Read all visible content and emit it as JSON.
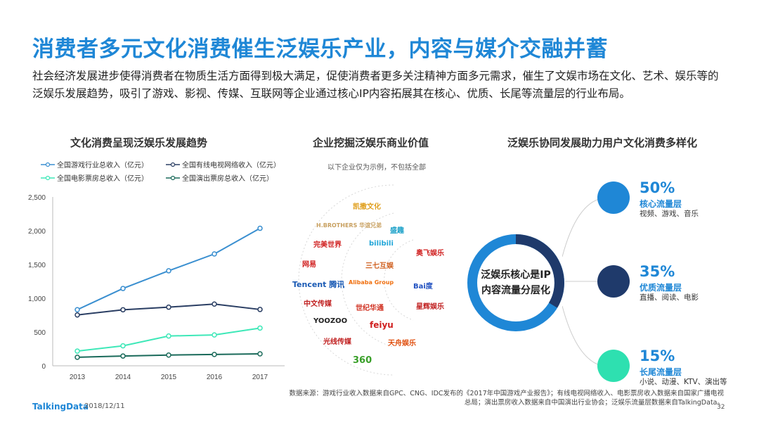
{
  "title": "消费者多元文化消费催生泛娱乐产业，内容与媒介交融并蓄",
  "intro": "社会经济发展进步使得消费者在物质生活方面得到极大满足，促使消费者更多关注精神方面多元需求，催生了文娱市场在文化、艺术、娱乐等的泛娱乐发展趋势，吸引了游戏、影视、传媒、互联网等企业通过核心IP内容拓展其在核心、优质、长尾等流量层的行业布局。",
  "left_section": {
    "title": "文化消费呈现泛娱乐发展趋势"
  },
  "middle_section": {
    "title": "企业挖掘泛娱乐商业价值",
    "note": "以下企业仅为示例，不包括全部",
    "logos": [
      {
        "name": "凯撒文化",
        "color": "#e0a020"
      },
      {
        "name": "H.BROTHERS 华谊兄弟",
        "color": "#c8a060"
      },
      {
        "name": "盛趣",
        "color": "#1aa0c8"
      },
      {
        "name": "完美世界",
        "color": "#d02020"
      },
      {
        "name": "bilibili",
        "color": "#22a6d8"
      },
      {
        "name": "网易",
        "color": "#d02020"
      },
      {
        "name": "三七互娱",
        "color": "#d06020"
      },
      {
        "name": "奥飞娱乐",
        "color": "#d02020"
      },
      {
        "name": "Tencent 腾讯",
        "color": "#1a5ab4"
      },
      {
        "name": "Alibaba Group",
        "color": "#f07010"
      },
      {
        "name": "Bai度",
        "color": "#2050c0"
      },
      {
        "name": "中文传媒",
        "color": "#c02020"
      },
      {
        "name": "世纪华通",
        "color": "#d03020"
      },
      {
        "name": "星辉娱乐",
        "color": "#c02020"
      },
      {
        "name": "YOOZOO",
        "color": "#222222"
      },
      {
        "name": "feiyu",
        "color": "#d02020"
      },
      {
        "name": "光线传媒",
        "color": "#c02020"
      },
      {
        "name": "天舟娱乐",
        "color": "#e05010"
      },
      {
        "name": "360",
        "color": "#3aa02a"
      }
    ]
  },
  "right_section": {
    "title": "泛娱乐协同发展助力用户文化消费多样化",
    "ring_label_1": "泛娱乐核心是IP",
    "ring_label_2": "内容流量分层化",
    "ring_colors": [
      "#1f87d6",
      "#1f3a6b"
    ],
    "layers": [
      {
        "pct": "50%",
        "name": "核心流量层",
        "desc": "视频、游戏、音乐",
        "color": "#1f87d6"
      },
      {
        "pct": "35%",
        "name": "优质流量层",
        "desc": "直播、阅读、电影",
        "color": "#1f3a6b"
      },
      {
        "pct": "15%",
        "name": "长尾流量层",
        "desc": "小说、动漫、KTV、演出等",
        "color": "#2ee0b0"
      }
    ]
  },
  "source_line1": "数据来源：游戏行业收入数据来自GPC、CNG、IDC发布的《2017年中国游戏产业报告》；有线电视网络收入、电影票房收入数据来自国家广播电视",
  "source_line2": "总局；演出票房收入数据来自中国演出行业协会；泛娱乐流量层数据来自TalkingData。",
  "footer": {
    "brand": "TalkingData",
    "date": "2018/12/11",
    "page": "32"
  },
  "chart_data": {
    "type": "line",
    "title": "文化消费呈现泛娱乐发展趋势",
    "categories": [
      "2013",
      "2014",
      "2015",
      "2016",
      "2017"
    ],
    "ylim": [
      0,
      2500
    ],
    "yticks": [
      "0",
      "500",
      "1,000",
      "1,500",
      "2,000",
      "2,500"
    ],
    "grid": false,
    "legend_position": "top",
    "series": [
      {
        "name": "全国游戏行业总收入（亿元）",
        "color": "#3a8fd0",
        "values": [
          831,
          1145,
          1407,
          1656,
          2036
        ]
      },
      {
        "name": "全国有线电视网络收入（亿元）",
        "color": "#2a3e63",
        "values": [
          753,
          830,
          868,
          914,
          834
        ]
      },
      {
        "name": "全国电影票房总收入（亿元）",
        "color": "#3ee8b8",
        "values": [
          218,
          296,
          441,
          457,
          559
        ]
      },
      {
        "name": "全国演出票房总收入（亿元）",
        "color": "#1a6a5a",
        "values": [
          126,
          145,
          159,
          168,
          177
        ]
      }
    ]
  }
}
